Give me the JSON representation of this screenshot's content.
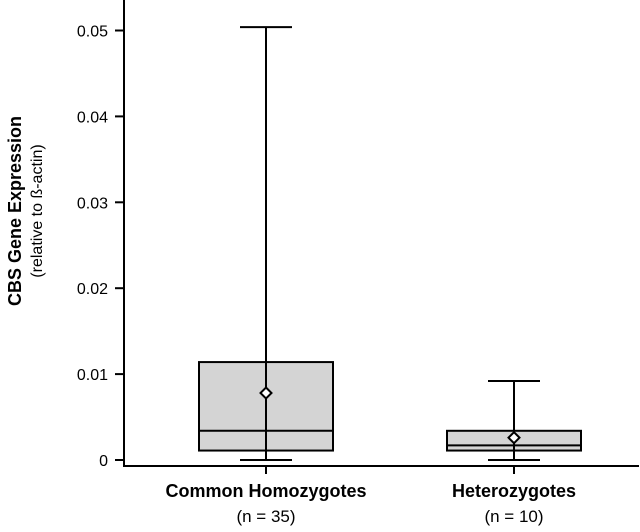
{
  "chart_data": {
    "type": "box",
    "title": "",
    "ylabel": "CBS Gene Expression",
    "ylabel_sub": "(relative to ß-actin)",
    "xlabel": "",
    "ylim": [
      0,
      0.053
    ],
    "yticks": [
      0,
      0.01,
      0.02,
      0.03,
      0.04,
      0.05
    ],
    "ytick_labels": [
      "0",
      "0.01",
      "0.02",
      "0.03",
      "0.04",
      "0.05"
    ],
    "grid": false,
    "categories": [
      {
        "label": "Common Homozygotes",
        "n_label": "(n = 35)",
        "min": 0.0,
        "q1": 0.0011,
        "median": 0.0034,
        "q3": 0.0114,
        "max": 0.0504,
        "mean": 0.0078
      },
      {
        "label": "Heterozygotes",
        "n_label": "(n = 10)",
        "min": 0.0,
        "q1": 0.0011,
        "median": 0.0017,
        "q3": 0.0034,
        "max": 0.0092,
        "mean": 0.0026
      }
    ],
    "colors": {
      "box_fill": "#d4d4d4",
      "line": "#000000",
      "mean_marker_fill": "#ffffff"
    },
    "mean_marker": "diamond"
  }
}
